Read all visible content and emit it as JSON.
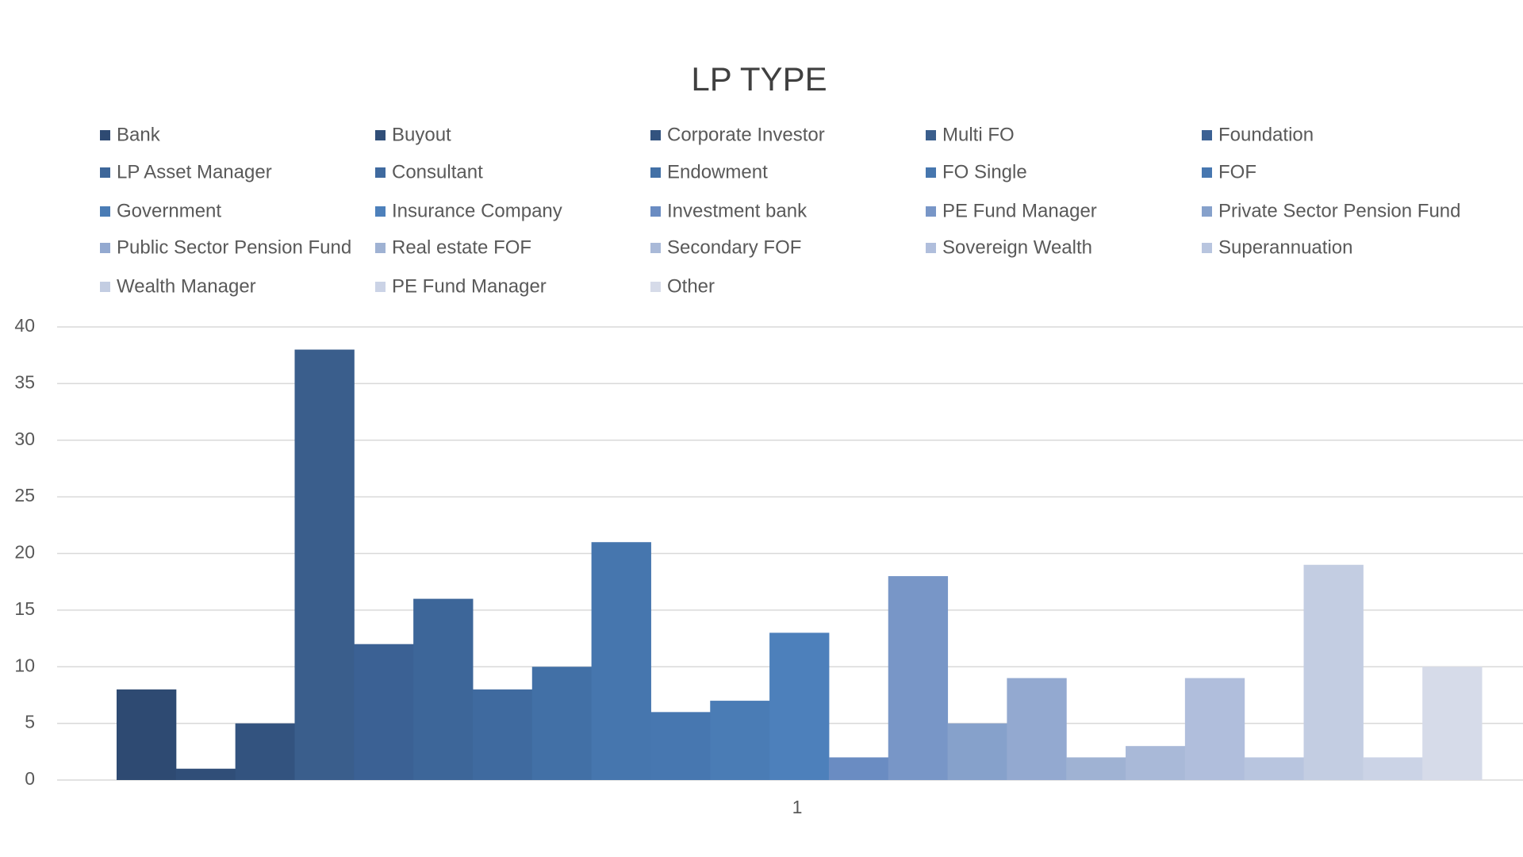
{
  "chart_data": {
    "type": "bar",
    "title": "LP TYPE",
    "categories": [
      "1"
    ],
    "series": [
      {
        "name": "Bank",
        "color": "#2e4a72",
        "values": [
          8
        ]
      },
      {
        "name": "Buyout",
        "color": "#304e78",
        "values": [
          1
        ]
      },
      {
        "name": "Corporate Investor",
        "color": "#33537f",
        "values": [
          5
        ]
      },
      {
        "name": "Multi FO",
        "color": "#3a5e8c",
        "values": [
          38
        ]
      },
      {
        "name": "Foundation",
        "color": "#3b6194",
        "values": [
          12
        ]
      },
      {
        "name": "LP Asset Manager",
        "color": "#3d6699",
        "values": [
          16
        ]
      },
      {
        "name": "Consultant",
        "color": "#3f6a9f",
        "values": [
          8
        ]
      },
      {
        "name": "Endowment",
        "color": "#4270a6",
        "values": [
          10
        ]
      },
      {
        "name": "FO Single",
        "color": "#4676ae",
        "values": [
          21
        ]
      },
      {
        "name": "FOF",
        "color": "#4777b0",
        "values": [
          6
        ]
      },
      {
        "name": "Government",
        "color": "#4a7cb5",
        "values": [
          7
        ]
      },
      {
        "name": "Insurance Company",
        "color": "#4d80bb",
        "values": [
          13
        ]
      },
      {
        "name": "Investment bank",
        "color": "#6a8cc2",
        "values": [
          2
        ]
      },
      {
        "name": "PE Fund Manager",
        "color": "#7896c7",
        "values": [
          18
        ]
      },
      {
        "name": "Private Sector Pension Fund",
        "color": "#86a1cb",
        "values": [
          5
        ]
      },
      {
        "name": "Public Sector Pension Fund",
        "color": "#93a9d0",
        "values": [
          9
        ]
      },
      {
        "name": "Real estate FOF",
        "color": "#9fb2d3",
        "values": [
          2
        ]
      },
      {
        "name": "Secondary FOF",
        "color": "#a9b9d8",
        "values": [
          3
        ]
      },
      {
        "name": "Sovereign Wealth",
        "color": "#b0bedc",
        "values": [
          9
        ]
      },
      {
        "name": "Superannuation",
        "color": "#b8c5df",
        "values": [
          2
        ]
      },
      {
        "name": "Wealth Manager",
        "color": "#c3cde2",
        "values": [
          19
        ]
      },
      {
        "name": "PE Fund Manager",
        "color": "#cbd3e6",
        "values": [
          2
        ]
      },
      {
        "name": "Other",
        "color": "#d6dbe9",
        "values": [
          10
        ]
      }
    ],
    "ylim": [
      0,
      40
    ],
    "yticks": [
      0,
      5,
      10,
      15,
      20,
      25,
      30,
      35,
      40
    ],
    "grid": true,
    "legend": "top"
  }
}
